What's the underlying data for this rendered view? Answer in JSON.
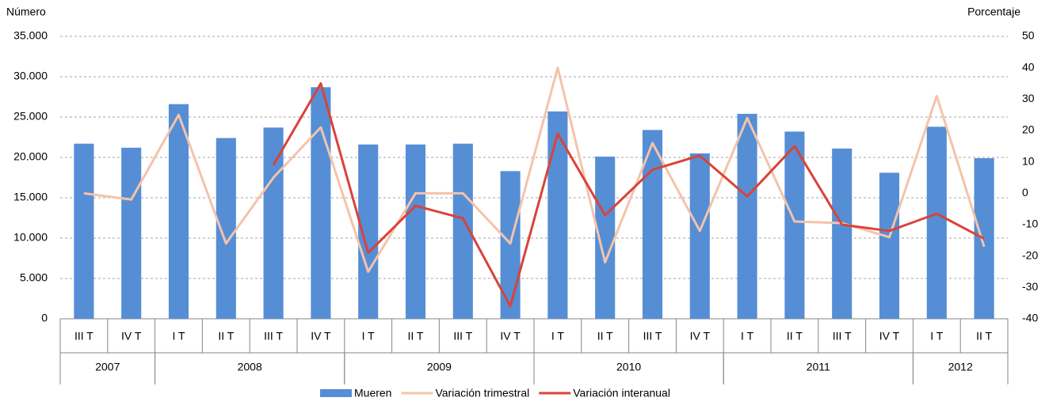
{
  "chart_data": {
    "type": "bar_line",
    "y_label": "Número",
    "y2_label": "Porcentaje",
    "categories": [
      "III T",
      "IV T",
      "I T",
      "II T",
      "III T",
      "IV T",
      "I T",
      "II T",
      "III T",
      "IV T",
      "I T",
      "II T",
      "III T",
      "IV T",
      "I T",
      "II T",
      "III T",
      "IV T",
      "I T",
      "II T"
    ],
    "x_groups": [
      {
        "label": "2007",
        "count": 2
      },
      {
        "label": "2008",
        "count": 4
      },
      {
        "label": "2009",
        "count": 4
      },
      {
        "label": "2010",
        "count": 4
      },
      {
        "label": "2011",
        "count": 4
      },
      {
        "label": "2012",
        "count": 2
      }
    ],
    "series": [
      {
        "name": "Mueren",
        "type": "bar",
        "color": "#558ed5",
        "values": [
          21700,
          21200,
          26600,
          22400,
          23700,
          28700,
          21600,
          21600,
          21700,
          18300,
          25700,
          20100,
          23400,
          20500,
          25400,
          23200,
          21100,
          18100,
          23800,
          19900
        ]
      },
      {
        "name": "Variación trimestral",
        "type": "line",
        "axis": "y2",
        "color": "#f4c3ab",
        "values": [
          0,
          -2,
          25,
          -16,
          5,
          21,
          -25,
          0,
          0,
          -16,
          40,
          -22,
          16,
          -12,
          24,
          -9,
          -9.5,
          -14,
          31,
          -17
        ]
      },
      {
        "name": "Variación interanual",
        "type": "line",
        "axis": "y2",
        "color": "#d9433a",
        "values": [
          null,
          null,
          null,
          null,
          9,
          35,
          -19,
          -4,
          -8,
          -36,
          19,
          -7,
          7.5,
          12,
          -1,
          15,
          -10,
          -12,
          -6.5,
          -14.5
        ]
      }
    ],
    "ylim": [
      0,
      35000
    ],
    "yticks": [
      0,
      {
        "value": 5000,
        "label": "5.000"
      },
      {
        "value": 10000,
        "label": "10.000"
      },
      {
        "value": 15000,
        "label": "15.000"
      },
      {
        "value": 20000,
        "label": "20.000"
      },
      {
        "value": 25000,
        "label": "25.000"
      },
      {
        "value": 30000,
        "label": "30.000"
      },
      {
        "value": 35000,
        "label": "35.000"
      }
    ],
    "y2lim": [
      -40,
      50
    ],
    "y2ticks": [
      -40,
      -30,
      -20,
      -10,
      0,
      10,
      20,
      30,
      40,
      50
    ],
    "grid": true,
    "legend": "bottom"
  }
}
